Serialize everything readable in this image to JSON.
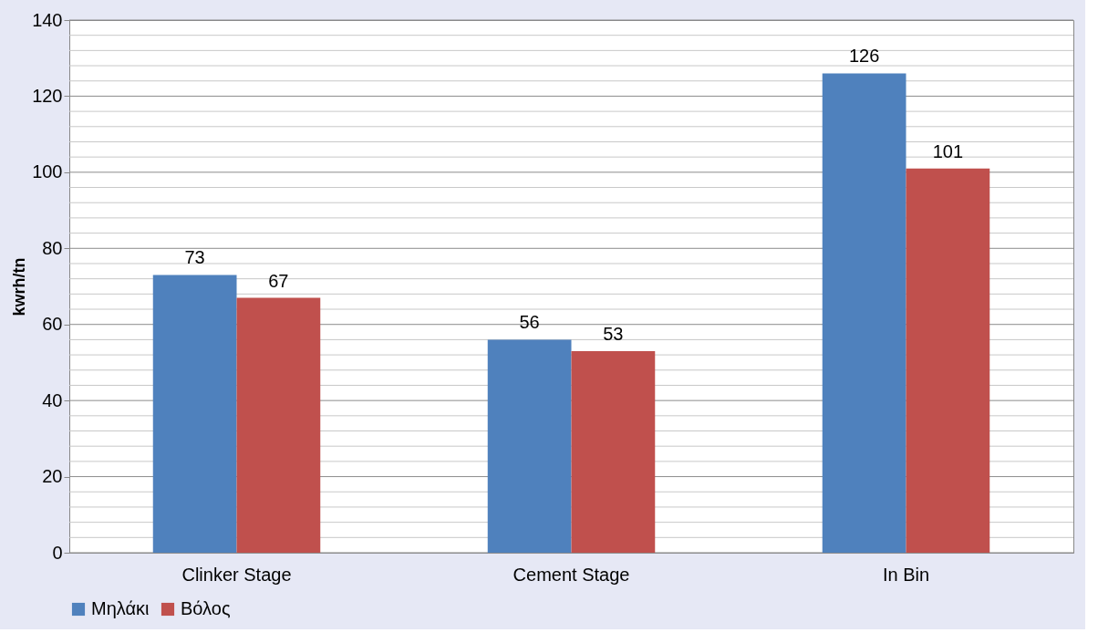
{
  "chart_data": {
    "type": "bar",
    "ylabel": "kwrh/tn",
    "categories": [
      "Clinker Stage",
      "Cement Stage",
      "In Bin"
    ],
    "series": [
      {
        "name": "Μηλάκι",
        "color": "#4f81bd",
        "values": [
          73,
          56,
          126
        ]
      },
      {
        "name": "Βόλος",
        "color": "#c0504d",
        "values": [
          67,
          53,
          101
        ]
      }
    ],
    "ylim": [
      0,
      140
    ],
    "yticks": [
      0,
      {
        "value": 4,
        "label": null
      },
      {
        "value": 8,
        "label": null
      },
      {
        "value": 12,
        "label": null
      },
      {
        "value": 16,
        "label": null
      },
      20,
      {
        "value": 24,
        "label": null
      },
      {
        "value": 28,
        "label": null
      },
      {
        "value": 32,
        "label": null
      },
      {
        "value": 36,
        "label": null
      },
      40,
      {
        "value": 44,
        "label": null
      },
      {
        "value": 48,
        "label": null
      },
      {
        "value": 52,
        "label": null
      },
      {
        "value": 56,
        "label": null
      },
      60,
      {
        "value": 64,
        "label": null
      },
      {
        "value": 68,
        "label": null
      },
      {
        "value": 72,
        "label": null
      },
      {
        "value": 76,
        "label": null
      },
      80,
      {
        "value": 84,
        "label": null
      },
      {
        "value": 88,
        "label": null
      },
      {
        "value": 92,
        "label": null
      },
      {
        "value": 96,
        "label": null
      },
      100,
      {
        "value": 104,
        "label": null
      },
      {
        "value": 108,
        "label": null
      },
      {
        "value": 112,
        "label": null
      },
      {
        "value": 116,
        "label": null
      },
      120,
      {
        "value": 124,
        "label": null
      },
      {
        "value": 128,
        "label": null
      },
      {
        "value": 132,
        "label": null
      },
      {
        "value": 136,
        "label": null
      },
      140
    ],
    "grid": true,
    "legend": "bottom",
    "data_labels": true
  }
}
